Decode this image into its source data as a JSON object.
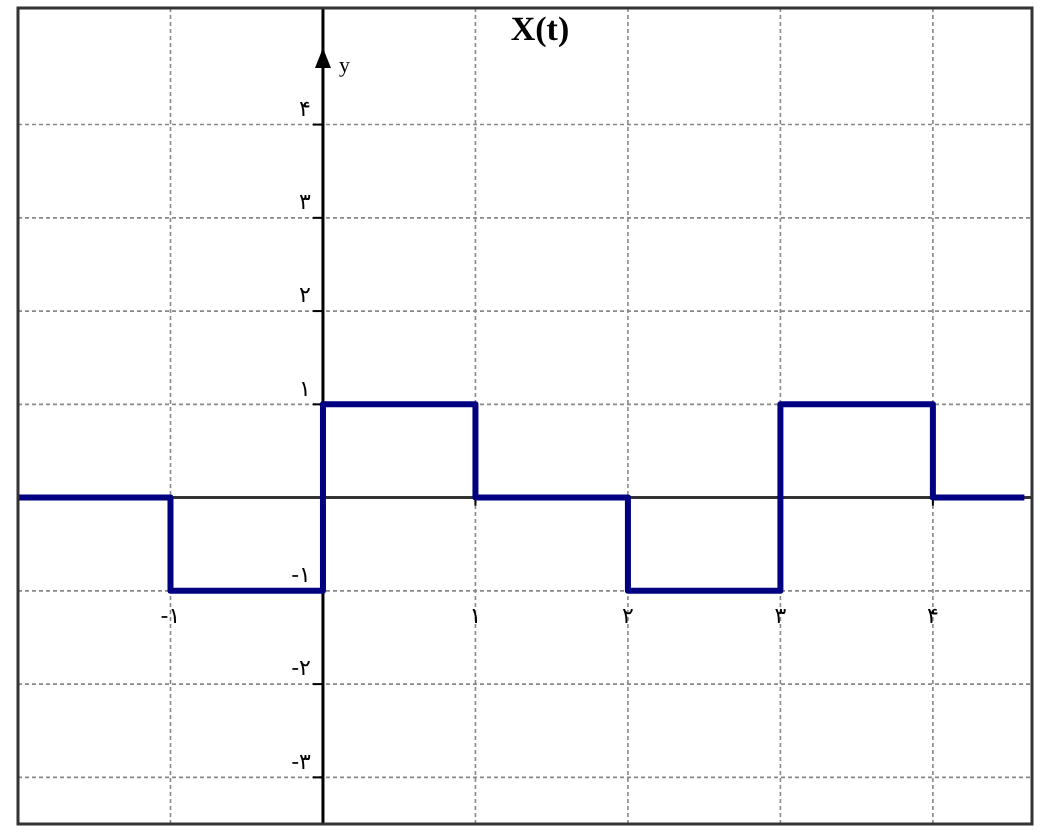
{
  "chart_data": {
    "type": "step",
    "title": "X(t)",
    "ylabel": "y",
    "x": [
      -2,
      -1,
      0,
      1,
      2,
      3,
      4,
      4.6
    ],
    "series": [
      {
        "color": "#000080",
        "values": [
          0,
          -1,
          1,
          0,
          -1,
          1,
          0,
          0
        ]
      }
    ],
    "xlim": [
      -2,
      4.65
    ],
    "ylim": [
      -3.5,
      5.25
    ],
    "xticks": [
      {
        "value": -1,
        "label": "-۱"
      },
      {
        "value": 1,
        "label": "۱"
      },
      {
        "value": 2,
        "label": "۲"
      },
      {
        "value": 3,
        "label": "۳"
      },
      {
        "value": 4,
        "label": "۴"
      }
    ],
    "yticks": [
      {
        "value": -3,
        "label": "-۳"
      },
      {
        "value": -2,
        "label": "-۲"
      },
      {
        "value": -1,
        "label": "-۱"
      },
      {
        "value": 1,
        "label": "۱"
      },
      {
        "value": 2,
        "label": "۲"
      },
      {
        "value": 3,
        "label": "۳"
      },
      {
        "value": 4,
        "label": "۴"
      }
    ],
    "grid": true,
    "line_style": "solid",
    "marker": "none"
  }
}
